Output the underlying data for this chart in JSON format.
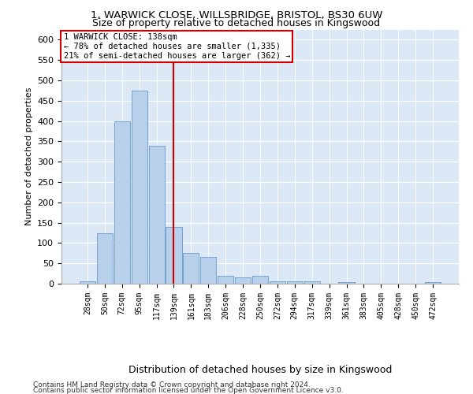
{
  "title1": "1, WARWICK CLOSE, WILLSBRIDGE, BRISTOL, BS30 6UW",
  "title2": "Size of property relative to detached houses in Kingswood",
  "xlabel": "Distribution of detached houses by size in Kingswood",
  "ylabel": "Number of detached properties",
  "footer1": "Contains HM Land Registry data © Crown copyright and database right 2024.",
  "footer2": "Contains public sector information licensed under the Open Government Licence v3.0.",
  "annotation_line1": "1 WARWICK CLOSE: 138sqm",
  "annotation_line2": "← 78% of detached houses are smaller (1,335)",
  "annotation_line3": "21% of semi-detached houses are larger (362) →",
  "bar_labels": [
    "28sqm",
    "50sqm",
    "72sqm",
    "95sqm",
    "117sqm",
    "139sqm",
    "161sqm",
    "183sqm",
    "206sqm",
    "228sqm",
    "250sqm",
    "272sqm",
    "294sqm",
    "317sqm",
    "339sqm",
    "361sqm",
    "383sqm",
    "405sqm",
    "428sqm",
    "450sqm",
    "472sqm"
  ],
  "bar_values": [
    5,
    125,
    400,
    475,
    340,
    140,
    75,
    65,
    20,
    15,
    20,
    5,
    5,
    5,
    0,
    3,
    0,
    0,
    0,
    0,
    3
  ],
  "bar_color": "#b8d0ea",
  "bar_edge_color": "#6699cc",
  "property_line_color": "#cc0000",
  "property_line_index": 4.97,
  "ylim": [
    0,
    625
  ],
  "bg_color": "#dce8f5",
  "annotation_box_color": "#cc0000",
  "title1_fontsize": 9.5,
  "title2_fontsize": 9,
  "annotation_fontsize": 7.5,
  "ylabel_fontsize": 8,
  "xlabel_fontsize": 9,
  "footer_fontsize": 6.5,
  "xtick_fontsize": 7,
  "ytick_fontsize": 8
}
